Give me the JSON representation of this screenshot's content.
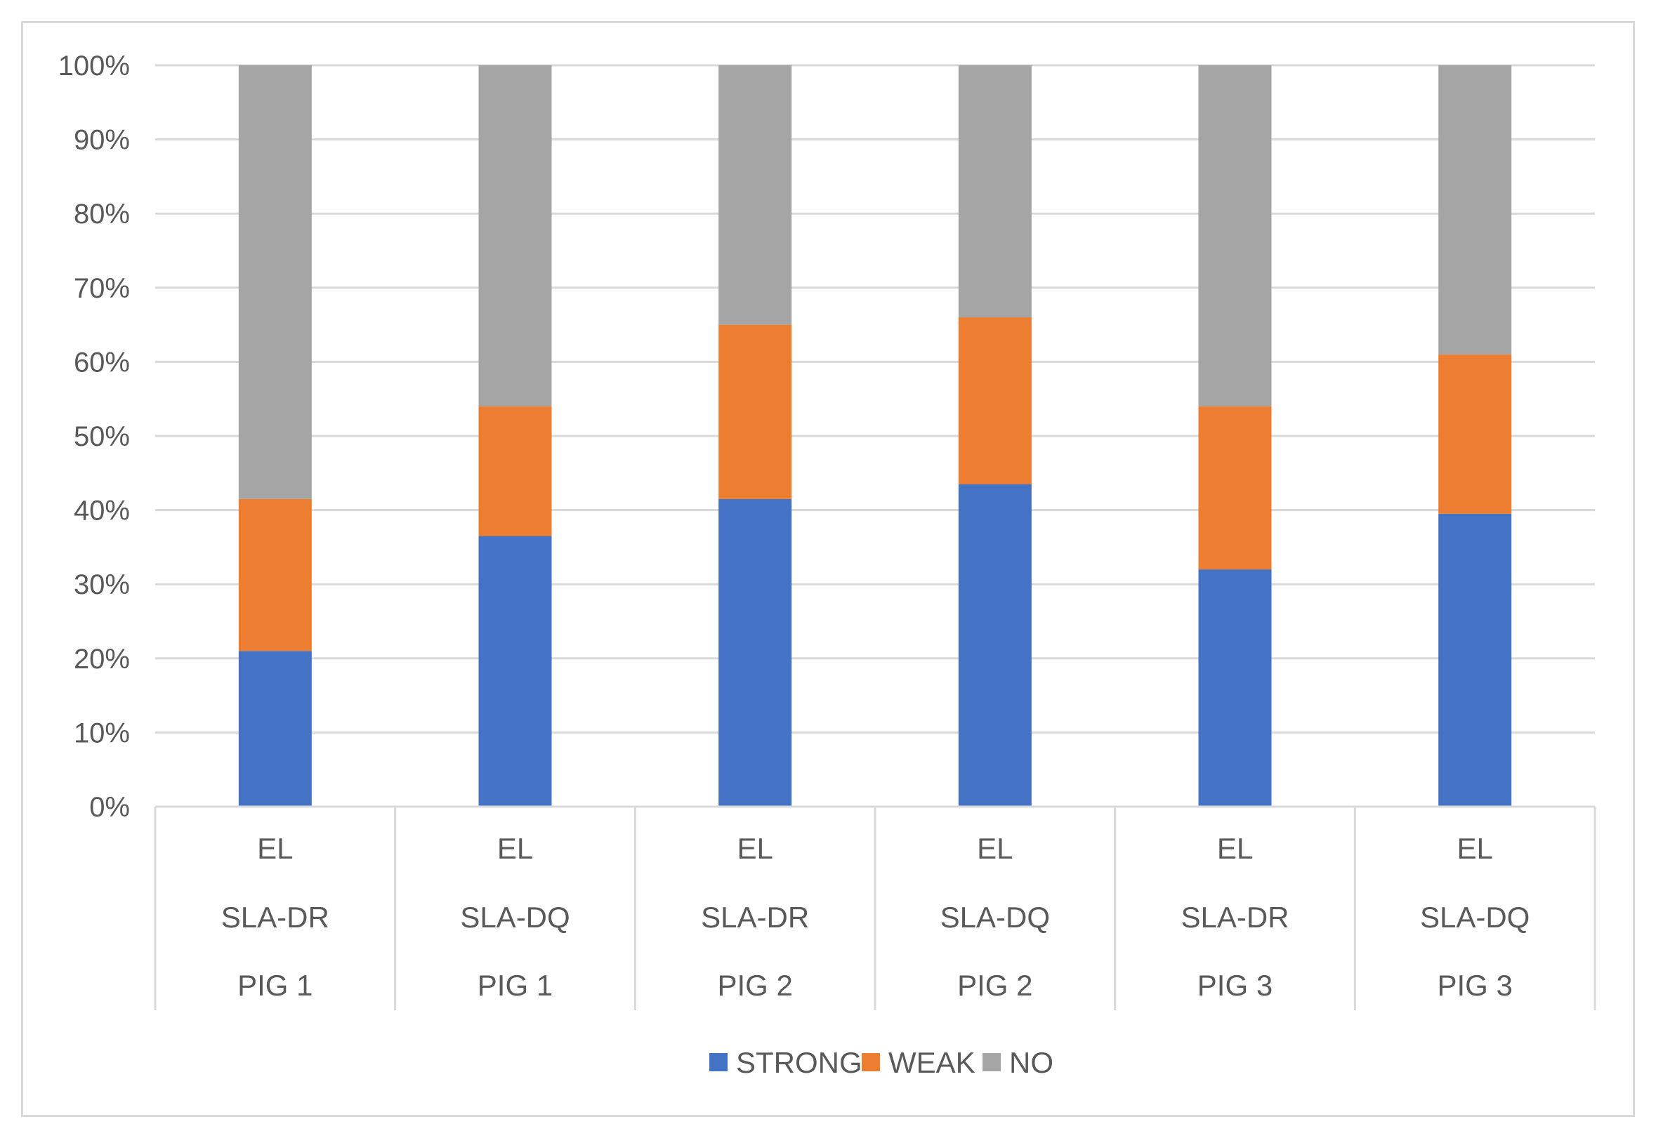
{
  "chart_data": {
    "type": "bar",
    "stacked": true,
    "percent_stacked": true,
    "title": "",
    "xlabel": "",
    "ylabel": "",
    "ylim": [
      0,
      100
    ],
    "y_ticks": [
      0,
      10,
      20,
      30,
      40,
      50,
      60,
      70,
      80,
      90,
      100
    ],
    "y_tick_labels": [
      "0%",
      "10%",
      "20%",
      "30%",
      "40%",
      "50%",
      "60%",
      "70%",
      "80%",
      "90%",
      "100%"
    ],
    "grid": true,
    "legend_position": "bottom",
    "categories": [
      [
        "EL",
        "SLA-DR",
        "PIG 1"
      ],
      [
        "EL",
        "SLA-DQ",
        "PIG 1"
      ],
      [
        "EL",
        "SLA-DR",
        "PIG 2"
      ],
      [
        "EL",
        "SLA-DQ",
        "PIG 2"
      ],
      [
        "EL",
        "SLA-DR",
        "PIG 3"
      ],
      [
        "EL",
        "SLA-DQ",
        "PIG 3"
      ]
    ],
    "series": [
      {
        "name": "STRONG",
        "color": "#4472c4",
        "values": [
          21,
          36.5,
          41.5,
          43.5,
          32,
          39.5
        ]
      },
      {
        "name": "WEAK",
        "color": "#ed7d31",
        "values": [
          20.5,
          17.5,
          23.5,
          22.5,
          22,
          21.5
        ]
      },
      {
        "name": "NO",
        "color": "#a5a5a5",
        "values": [
          58.5,
          46,
          35,
          34,
          46,
          39
        ]
      }
    ]
  },
  "colors": {
    "grid": "#d9d9d9",
    "text": "#595959",
    "frame": "#d9d9d9"
  }
}
